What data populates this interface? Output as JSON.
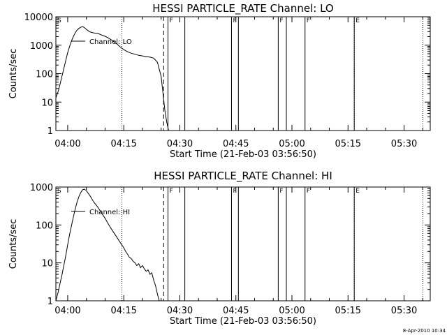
{
  "chart_data": [
    {
      "type": "line",
      "title": "HESSI PARTICLE_RATE Channel: LO",
      "xlabel": "Start Time (21-Feb-03 03:56:50)",
      "ylabel": "Counts/sec",
      "yscale": "log",
      "ylim": [
        1,
        10000
      ],
      "xlim": [
        "03:56:50",
        "05:37:00"
      ],
      "x_ticks": [
        "04:00",
        "04:15",
        "04:30",
        "04:45",
        "05:00",
        "05:15",
        "05:30"
      ],
      "y_ticks": [
        "1",
        "10",
        "100",
        "1000",
        "10000"
      ],
      "legend": "Channel: LO",
      "series": [
        {
          "name": "Channel: LO",
          "x": [
            "03:56:50",
            "03:57:30",
            "03:58:00",
            "03:58:30",
            "03:59:00",
            "03:59:30",
            "04:00:00",
            "04:00:30",
            "04:01:00",
            "04:01:30",
            "04:02:00",
            "04:02:30",
            "04:03:00",
            "04:03:30",
            "04:04:00",
            "04:04:30",
            "04:05:00",
            "04:05:30",
            "04:06:00",
            "04:06:30",
            "04:07:00",
            "04:08:00",
            "04:09:00",
            "04:10:00",
            "04:11:00",
            "04:12:00",
            "04:13:00",
            "04:14:00",
            "04:15:00",
            "04:16:00",
            "04:17:00",
            "04:18:00",
            "04:19:00",
            "04:20:00",
            "04:21:00",
            "04:22:00",
            "04:23:00",
            "04:24:00",
            "04:25:00",
            "04:25:30",
            "04:26:00",
            "04:26:30",
            "04:27:00"
          ],
          "y": [
            14,
            25,
            45,
            85,
            160,
            300,
            550,
            900,
            1400,
            2000,
            2700,
            3400,
            3900,
            4300,
            4500,
            4100,
            3600,
            3200,
            2900,
            2800,
            2700,
            2600,
            2300,
            2050,
            1750,
            1450,
            1150,
            880,
            700,
            590,
            520,
            480,
            440,
            420,
            400,
            380,
            350,
            250,
            80,
            20,
            5,
            2,
            1
          ]
        }
      ],
      "vlines_dotted": [
        "04:14:30",
        "05:16:40",
        "05:35:00"
      ],
      "vlines_dashed": [
        "04:25:40"
      ],
      "vlines_solid": [
        "04:26:50",
        "04:31:20",
        "04:43:50",
        "04:45:40",
        "04:56:20",
        "04:58:30",
        "05:03:30",
        "05:16:40"
      ],
      "flags": [
        {
          "text": "F",
          "time": "04:26:50"
        },
        {
          "text": "F",
          "time": "04:43:50"
        },
        {
          "text": "F",
          "time": "04:56:20"
        },
        {
          "text": "F",
          "time": "05:03:30"
        },
        {
          "text": "E",
          "time": "05:16:40"
        },
        {
          "text": "S",
          "time": "03:56:50"
        }
      ]
    },
    {
      "type": "line",
      "title": "HESSI PARTICLE_RATE Channel: HI",
      "xlabel": "Start Time (21-Feb-03 03:56:50)",
      "ylabel": "Counts/sec",
      "yscale": "log",
      "ylim": [
        1,
        1000
      ],
      "xlim": [
        "03:56:50",
        "05:37:00"
      ],
      "x_ticks": [
        "04:00",
        "04:15",
        "04:30",
        "04:45",
        "05:00",
        "05:15",
        "05:30"
      ],
      "y_ticks": [
        "1",
        "10",
        "100",
        "1000"
      ],
      "legend": "Channel: HI",
      "series": [
        {
          "name": "Channel: HI",
          "x": [
            "03:56:50",
            "03:57:30",
            "03:58:00",
            "03:58:30",
            "03:59:00",
            "03:59:30",
            "04:00:00",
            "04:00:30",
            "04:01:00",
            "04:01:30",
            "04:02:00",
            "04:02:30",
            "04:03:00",
            "04:03:30",
            "04:04:00",
            "04:04:30",
            "04:05:00",
            "04:05:30",
            "04:06:00",
            "04:06:30",
            "04:07:00",
            "04:08:00",
            "04:09:00",
            "04:10:00",
            "04:11:00",
            "04:12:00",
            "04:13:00",
            "04:14:00",
            "04:15:00",
            "04:15:30",
            "04:16:00",
            "04:16:30",
            "04:17:00",
            "04:17:30",
            "04:18:00",
            "04:18:30",
            "04:19:00",
            "04:19:30",
            "04:20:00",
            "04:20:30",
            "04:21:00",
            "04:21:30",
            "04:22:00",
            "04:22:30",
            "04:23:00",
            "04:23:30",
            "04:24:00",
            "04:24:30"
          ],
          "y": [
            1.0,
            1.8,
            3,
            5,
            9,
            16,
            30,
            55,
            95,
            160,
            260,
            400,
            560,
            720,
            850,
            880,
            800,
            680,
            580,
            480,
            400,
            300,
            210,
            150,
            100,
            70,
            50,
            35,
            25,
            20,
            17,
            14,
            13,
            11,
            10,
            8.5,
            9.5,
            7.5,
            8.5,
            7,
            6,
            6.5,
            5,
            5.5,
            3.5,
            2.5,
            1.5,
            1.0
          ]
        }
      ],
      "vlines_dotted": [
        "04:14:30",
        "05:16:40",
        "05:35:00"
      ],
      "vlines_dashed": [
        "04:25:40"
      ],
      "vlines_solid": [
        "04:26:50",
        "04:31:20",
        "04:43:50",
        "04:45:40",
        "04:56:20",
        "04:58:30",
        "05:03:30",
        "05:16:40"
      ],
      "flags": [
        {
          "text": "F",
          "time": "04:26:50"
        },
        {
          "text": "F",
          "time": "04:43:50"
        },
        {
          "text": "F",
          "time": "04:56:20"
        },
        {
          "text": "F",
          "time": "05:03:30"
        },
        {
          "text": "E",
          "time": "05:16:40"
        },
        {
          "text": "S",
          "time": "03:56:50"
        }
      ]
    }
  ],
  "footer": {
    "stamp": "8-Apr-2010 10:34"
  }
}
